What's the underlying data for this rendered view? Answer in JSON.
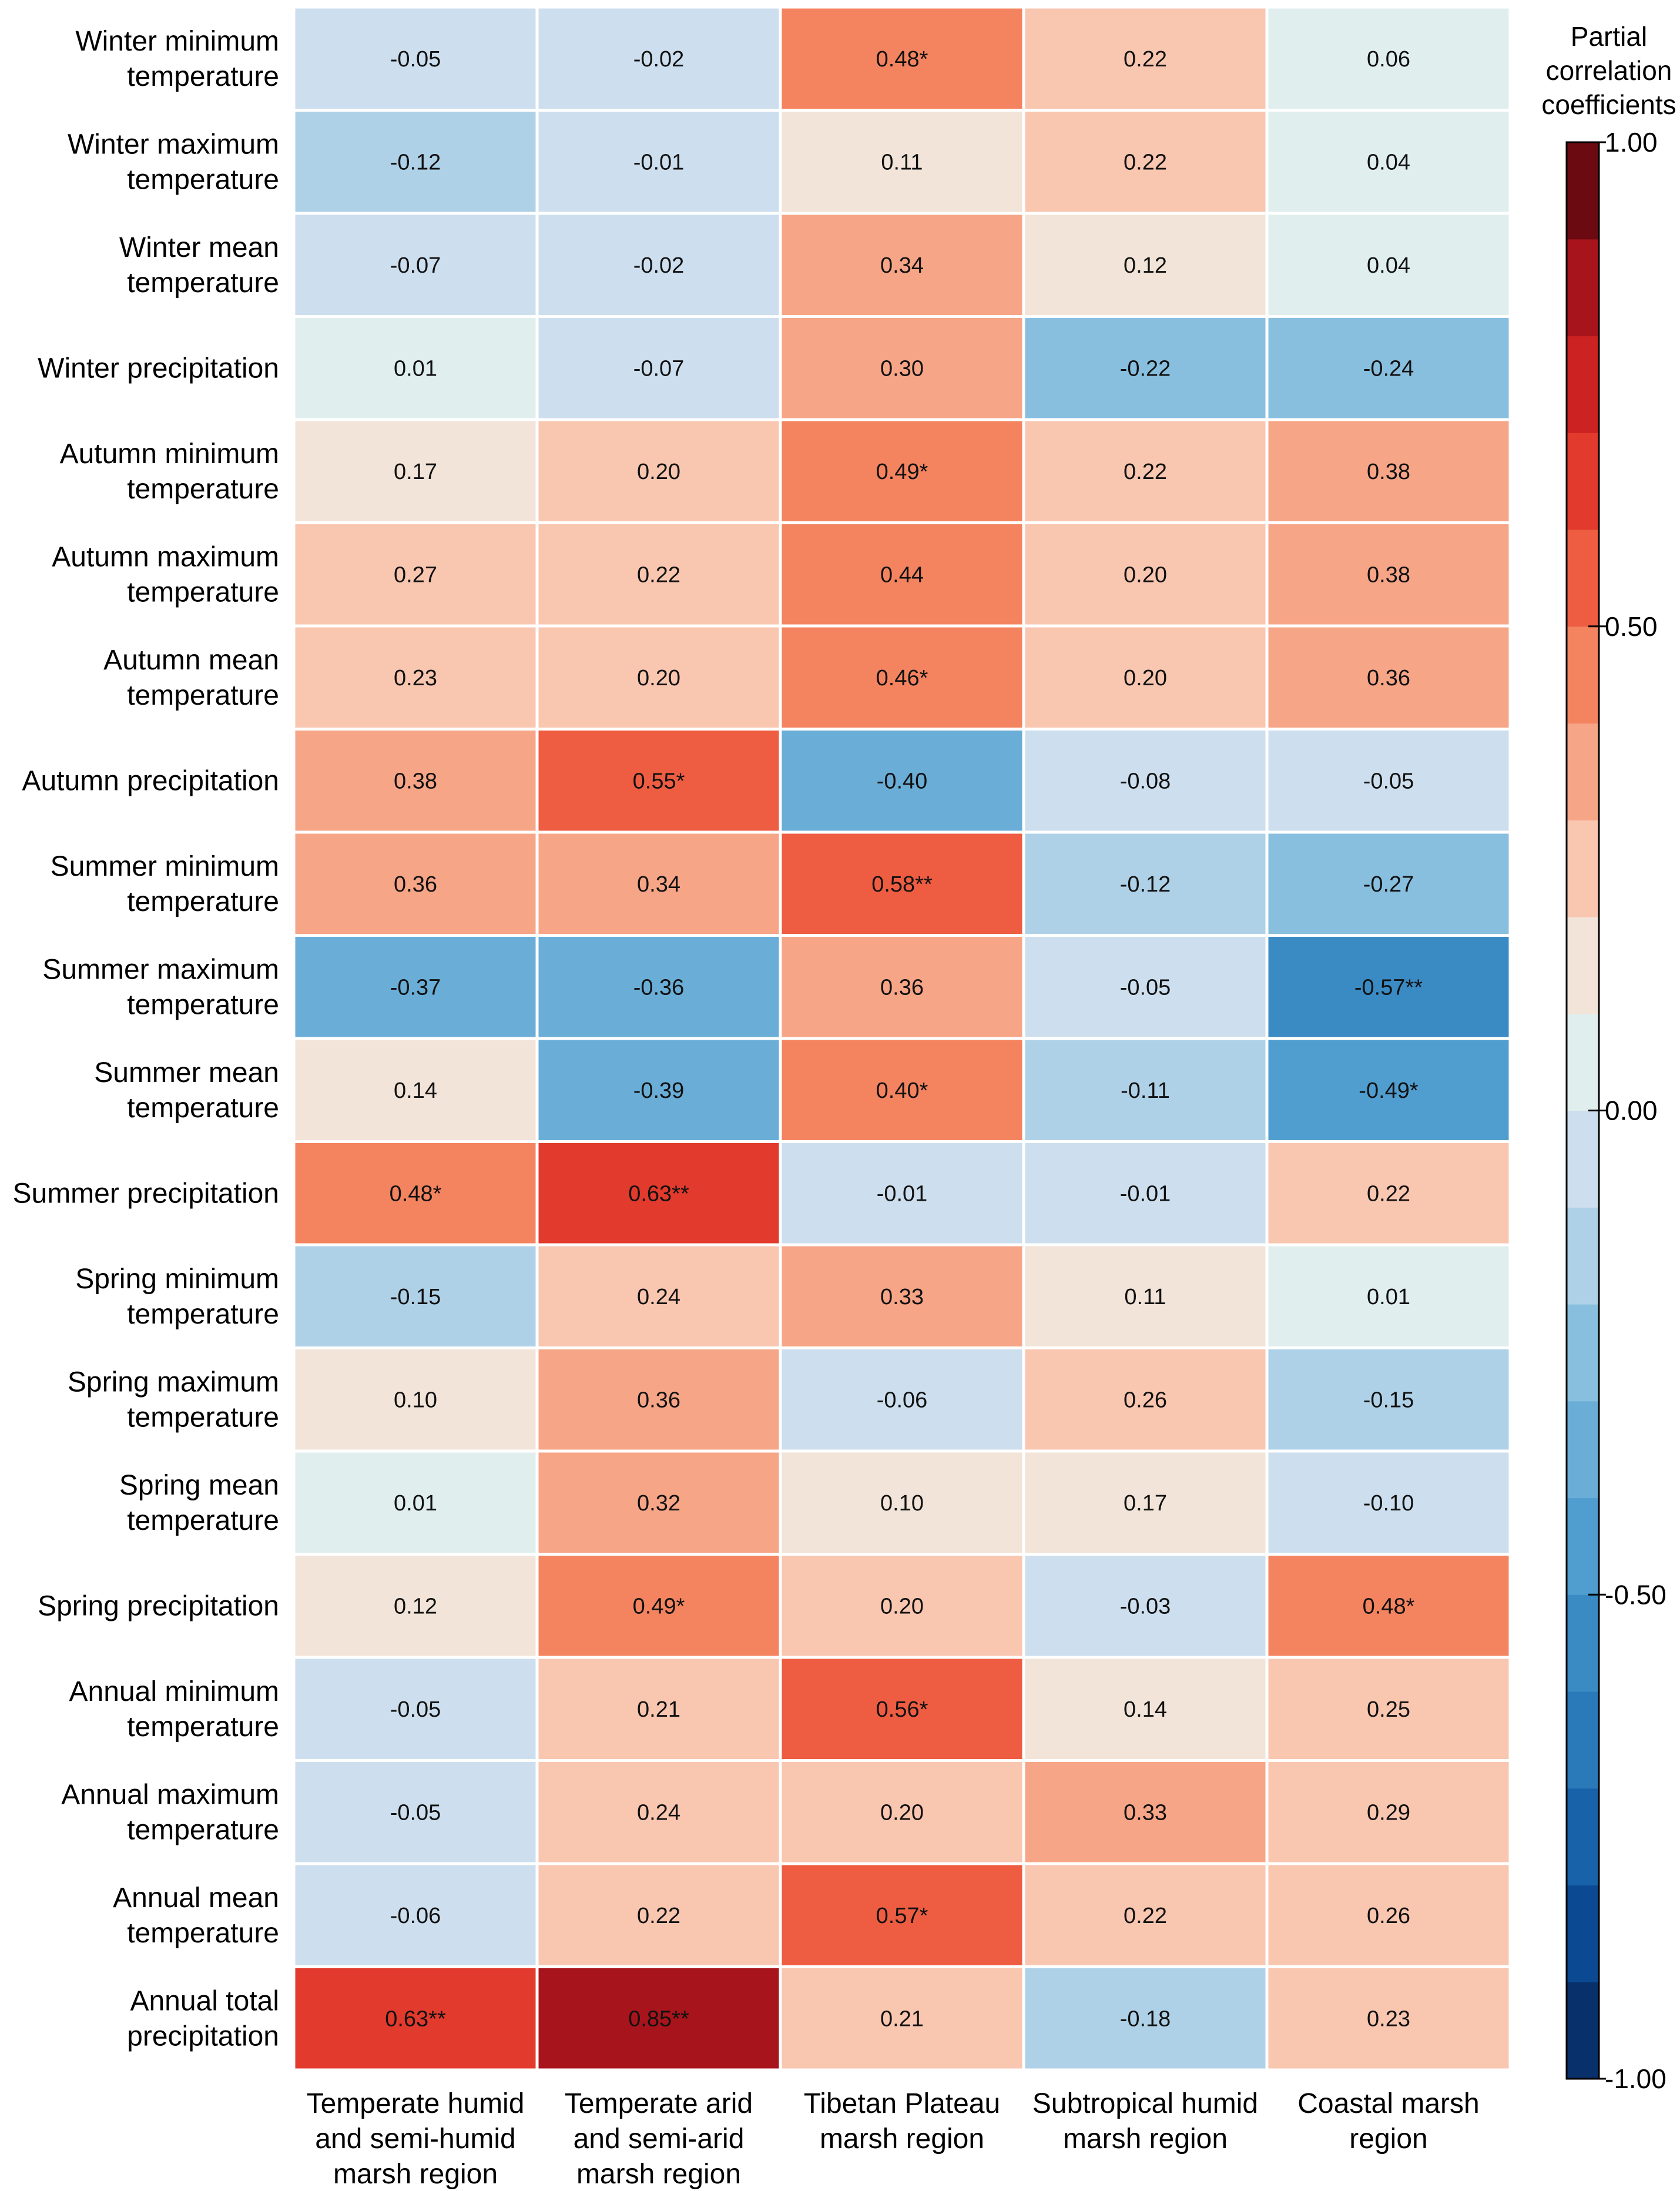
{
  "chart_data": {
    "type": "heatmap",
    "title": "",
    "columns": [
      [
        "Temperate humid",
        "and semi-humid",
        "marsh region"
      ],
      [
        "Temperate arid",
        "and semi-arid",
        "marsh region"
      ],
      [
        "Tibetan Plateau",
        "marsh region"
      ],
      [
        "Subtropical humid",
        "marsh region"
      ],
      [
        "Coastal marsh",
        "region"
      ]
    ],
    "rows": [
      [
        "Winter minimum",
        "temperature"
      ],
      [
        "Winter maximum",
        "temperature"
      ],
      [
        "Winter mean",
        "temperature"
      ],
      [
        "Winter precipitation"
      ],
      [
        "Autumn minimum",
        "temperature"
      ],
      [
        "Autumn maximum",
        "temperature"
      ],
      [
        "Autumn mean",
        "temperature"
      ],
      [
        "Autumn precipitation"
      ],
      [
        "Summer minimum",
        "temperature"
      ],
      [
        "Summer maximum",
        "temperature"
      ],
      [
        "Summer mean",
        "temperature"
      ],
      [
        "Summer precipitation"
      ],
      [
        "Spring minimum",
        "temperature"
      ],
      [
        "Spring maximum",
        "temperature"
      ],
      [
        "Spring mean",
        "temperature"
      ],
      [
        "Spring precipitation"
      ],
      [
        "Annual minimum",
        "temperature"
      ],
      [
        "Annual maximum",
        "temperature"
      ],
      [
        "Annual mean",
        "temperature"
      ],
      [
        "Annual total",
        "precipitation"
      ]
    ],
    "values": [
      [
        -0.05,
        -0.02,
        0.48,
        0.22,
        0.06
      ],
      [
        -0.12,
        -0.01,
        0.11,
        0.22,
        0.04
      ],
      [
        -0.07,
        -0.02,
        0.34,
        0.12,
        0.04
      ],
      [
        0.01,
        -0.07,
        0.3,
        -0.22,
        -0.24
      ],
      [
        0.17,
        0.2,
        0.49,
        0.22,
        0.38
      ],
      [
        0.27,
        0.22,
        0.44,
        0.2,
        0.38
      ],
      [
        0.23,
        0.2,
        0.46,
        0.2,
        0.36
      ],
      [
        0.38,
        0.55,
        -0.4,
        -0.08,
        -0.05
      ],
      [
        0.36,
        0.34,
        0.58,
        -0.12,
        -0.27
      ],
      [
        -0.37,
        -0.36,
        0.36,
        -0.05,
        -0.57
      ],
      [
        0.14,
        -0.39,
        0.4,
        -0.11,
        -0.49
      ],
      [
        0.48,
        0.63,
        -0.01,
        -0.01,
        0.22
      ],
      [
        -0.15,
        0.24,
        0.33,
        0.11,
        0.01
      ],
      [
        0.1,
        0.36,
        -0.06,
        0.26,
        -0.15
      ],
      [
        0.01,
        0.32,
        0.1,
        0.17,
        -0.1
      ],
      [
        0.12,
        0.49,
        0.2,
        -0.03,
        0.48
      ],
      [
        -0.05,
        0.21,
        0.56,
        0.14,
        0.25
      ],
      [
        -0.05,
        0.24,
        0.2,
        0.33,
        0.29
      ],
      [
        -0.06,
        0.22,
        0.57,
        0.22,
        0.26
      ],
      [
        0.63,
        0.85,
        0.21,
        -0.18,
        0.23
      ]
    ],
    "labels": [
      [
        "-0.05",
        "-0.02",
        "0.48*",
        "0.22",
        "0.06"
      ],
      [
        "-0.12",
        "-0.01",
        "0.11",
        "0.22",
        "0.04"
      ],
      [
        "-0.07",
        "-0.02",
        "0.34",
        "0.12",
        "0.04"
      ],
      [
        "0.01",
        "-0.07",
        "0.30",
        "-0.22",
        "-0.24"
      ],
      [
        "0.17",
        "0.20",
        "0.49*",
        "0.22",
        "0.38"
      ],
      [
        "0.27",
        "0.22",
        "0.44",
        "0.20",
        "0.38"
      ],
      [
        "0.23",
        "0.20",
        "0.46*",
        "0.20",
        "0.36"
      ],
      [
        "0.38",
        "0.55*",
        "-0.40",
        "-0.08",
        "-0.05"
      ],
      [
        "0.36",
        "0.34",
        "0.58**",
        "-0.12",
        "-0.27"
      ],
      [
        "-0.37",
        "-0.36",
        "0.36",
        "-0.05",
        "-0.57**"
      ],
      [
        "0.14",
        "-0.39",
        "0.40*",
        "-0.11",
        "-0.49*"
      ],
      [
        "0.48*",
        "0.63**",
        "-0.01",
        "-0.01",
        "0.22"
      ],
      [
        "-0.15",
        "0.24",
        "0.33",
        "0.11",
        "0.01"
      ],
      [
        "0.10",
        "0.36",
        "-0.06",
        "0.26",
        "-0.15"
      ],
      [
        "0.01",
        "0.32",
        "0.10",
        "0.17",
        "-0.10"
      ],
      [
        "0.12",
        "0.49*",
        "0.20",
        "-0.03",
        "0.48*"
      ],
      [
        "-0.05",
        "0.21",
        "0.56*",
        "0.14",
        "0.25"
      ],
      [
        "-0.05",
        "0.24",
        "0.20",
        "0.33",
        "0.29"
      ],
      [
        "-0.06",
        "0.22",
        "0.57*",
        "0.22",
        "0.26"
      ],
      [
        "0.63**",
        "0.85**",
        "0.21",
        "-0.18",
        "0.23"
      ]
    ],
    "colorbar": {
      "title": [
        "Partial",
        "correlation",
        "coefficients"
      ],
      "range": [
        -1.0,
        1.0
      ],
      "ticks": [
        1.0,
        0.5,
        0.0,
        -0.5,
        -1.0
      ],
      "tick_labels": [
        "1.00",
        "0.50",
        "0.00",
        "-0.50",
        "-1.00"
      ],
      "bins": 20,
      "colors": [
        "#08306b",
        "#0b4a92",
        "#1862aa",
        "#2a7ab9",
        "#3a8ac4",
        "#509dcf",
        "#6aaed7",
        "#88bfdf",
        "#afd1e7",
        "#cddfee",
        "#e0efee",
        "#f2e4d8",
        "#f9c6b0",
        "#f7a587",
        "#f4845f",
        "#ee5d42",
        "#e23a2c",
        "#cc2222",
        "#a8141c",
        "#6b0a10"
      ]
    }
  }
}
